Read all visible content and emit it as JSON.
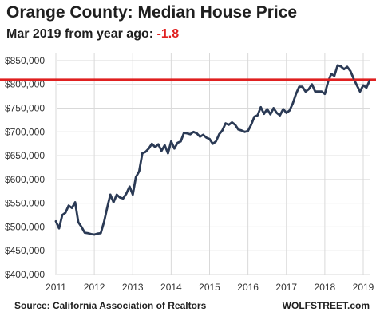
{
  "chart_data": {
    "type": "line",
    "title": "Orange County: Median House Price",
    "subtitle_text": "Mar 2019 from year ago: ",
    "subtitle_value": "-1.8",
    "xlabel": "",
    "ylabel": "",
    "ylim": [
      400000,
      860000
    ],
    "xlim": [
      2011,
      2019
    ],
    "yticks": [
      400000,
      450000,
      500000,
      550000,
      600000,
      650000,
      700000,
      750000,
      800000,
      850000
    ],
    "ytick_labels": [
      "$400,000",
      "$450,000",
      "$500,000",
      "$550,000",
      "$600,000",
      "$650,000",
      "$700,000",
      "$750,000",
      "$800,000",
      "$850,000"
    ],
    "xticks": [
      2011,
      2012,
      2013,
      2014,
      2015,
      2016,
      2017,
      2018,
      2019
    ],
    "xtick_labels": [
      "2011",
      "2012",
      "2013",
      "2014",
      "2015",
      "2016",
      "2017",
      "2018",
      "2019"
    ],
    "grid": true,
    "reference_line": {
      "value": 810000,
      "color": "#e02020"
    },
    "series": [
      {
        "color": "#2b3a55",
        "x": [
          2011.0,
          2011.083,
          2011.167,
          2011.25,
          2011.333,
          2011.417,
          2011.5,
          2011.583,
          2011.667,
          2011.75,
          2011.833,
          2011.917,
          2012.0,
          2012.083,
          2012.167,
          2012.25,
          2012.333,
          2012.417,
          2012.5,
          2012.583,
          2012.667,
          2012.75,
          2012.833,
          2012.917,
          2013.0,
          2013.083,
          2013.167,
          2013.25,
          2013.333,
          2013.417,
          2013.5,
          2013.583,
          2013.667,
          2013.75,
          2013.833,
          2013.917,
          2014.0,
          2014.083,
          2014.167,
          2014.25,
          2014.333,
          2014.417,
          2014.5,
          2014.583,
          2014.667,
          2014.75,
          2014.833,
          2014.917,
          2015.0,
          2015.083,
          2015.167,
          2015.25,
          2015.333,
          2015.417,
          2015.5,
          2015.583,
          2015.667,
          2015.75,
          2015.833,
          2015.917,
          2016.0,
          2016.083,
          2016.167,
          2016.25,
          2016.333,
          2016.417,
          2016.5,
          2016.583,
          2016.667,
          2016.75,
          2016.833,
          2016.917,
          2017.0,
          2017.083,
          2017.167,
          2017.25,
          2017.333,
          2017.417,
          2017.5,
          2017.583,
          2017.667,
          2017.75,
          2017.833,
          2017.917,
          2018.0,
          2018.083,
          2018.167,
          2018.25,
          2018.333,
          2018.417,
          2018.5,
          2018.583,
          2018.667,
          2018.75,
          2018.833,
          2018.917,
          2019.0,
          2019.083,
          2019.167
        ],
        "values": [
          512000,
          497000,
          525000,
          530000,
          545000,
          540000,
          552000,
          510000,
          500000,
          488000,
          487000,
          485000,
          484000,
          486000,
          487000,
          510000,
          540000,
          568000,
          552000,
          568000,
          562000,
          560000,
          570000,
          585000,
          568000,
          605000,
          617000,
          655000,
          658000,
          665000,
          675000,
          668000,
          674000,
          660000,
          672000,
          655000,
          680000,
          665000,
          677000,
          680000,
          698000,
          697000,
          695000,
          700000,
          697000,
          690000,
          694000,
          688000,
          685000,
          675000,
          680000,
          695000,
          703000,
          718000,
          715000,
          720000,
          715000,
          705000,
          703000,
          700000,
          702000,
          715000,
          732000,
          735000,
          752000,
          738000,
          748000,
          737000,
          750000,
          740000,
          735000,
          748000,
          740000,
          745000,
          760000,
          780000,
          795000,
          795000,
          785000,
          790000,
          800000,
          785000,
          785000,
          785000,
          780000,
          805000,
          822000,
          818000,
          840000,
          838000,
          832000,
          837000,
          828000,
          812000,
          798000,
          785000,
          798000,
          793000,
          808000
        ]
      }
    ]
  },
  "footer": {
    "source": "Source: California Association of Realtors",
    "brand": "WOLFSTREET.com"
  },
  "colors": {
    "line": "#2b3a55",
    "reference": "#e02020",
    "grid": "#d9d9d9",
    "text": "#1f1f1f"
  }
}
